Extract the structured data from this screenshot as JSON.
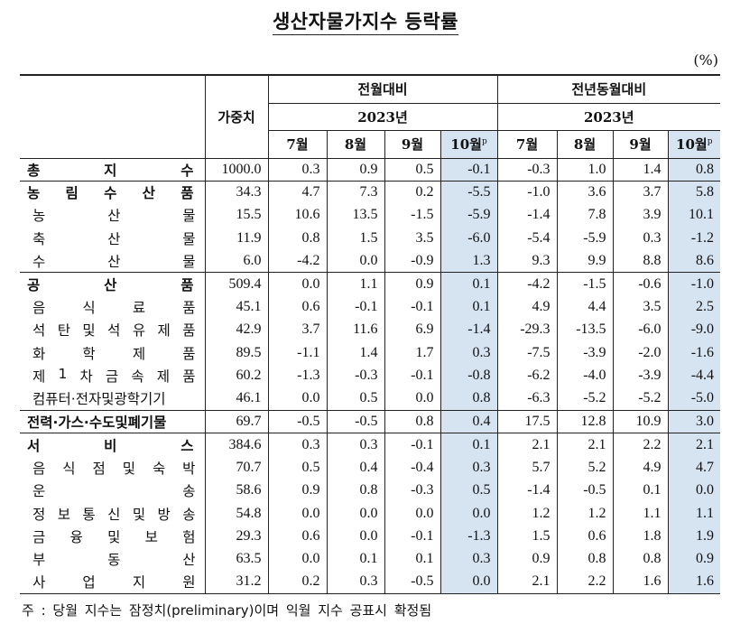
{
  "title": "생산자물가지수 등락률",
  "unit": "(%)",
  "header": {
    "weight": "가중치",
    "mom": "전월대비",
    "yoy": "전년동월대비",
    "year": "2023년",
    "months": [
      "7월",
      "8월",
      "9월",
      "10월"
    ],
    "prelim_mark": "p"
  },
  "rows": [
    {
      "label": "총지수",
      "chars": [
        "총",
        "지",
        "수"
      ],
      "level": "top",
      "weight": "1000.0",
      "mom": [
        "0.3",
        "0.9",
        "0.5",
        "-0.1"
      ],
      "yoy": [
        "-0.3",
        "1.0",
        "1.4",
        "0.8"
      ]
    },
    {
      "label": "농림수산품",
      "chars": [
        "농",
        "림",
        "수",
        "산",
        "품"
      ],
      "level": "top",
      "weight": "34.3",
      "mom": [
        "4.7",
        "7.3",
        "0.2",
        "-5.5"
      ],
      "yoy": [
        "-1.0",
        "3.6",
        "3.7",
        "5.8"
      ]
    },
    {
      "label": "농산물",
      "chars": [
        "농",
        "산",
        "물"
      ],
      "level": "sub",
      "weight": "15.5",
      "mom": [
        "10.6",
        "13.5",
        "-1.5",
        "-5.9"
      ],
      "yoy": [
        "-1.4",
        "7.8",
        "3.9",
        "10.1"
      ]
    },
    {
      "label": "축산물",
      "chars": [
        "축",
        "산",
        "물"
      ],
      "level": "sub",
      "weight": "11.9",
      "mom": [
        "0.8",
        "1.5",
        "3.5",
        "-6.0"
      ],
      "yoy": [
        "-5.4",
        "-5.9",
        "0.3",
        "-1.2"
      ]
    },
    {
      "label": "수산물",
      "chars": [
        "수",
        "산",
        "물"
      ],
      "level": "sub",
      "weight": "6.0",
      "mom": [
        "-4.2",
        "0.0",
        "-0.9",
        "1.3"
      ],
      "yoy": [
        "9.3",
        "9.9",
        "8.8",
        "8.6"
      ]
    },
    {
      "label": "공산품",
      "chars": [
        "공",
        "산",
        "품"
      ],
      "level": "top",
      "weight": "509.4",
      "mom": [
        "0.0",
        "1.1",
        "0.9",
        "0.1"
      ],
      "yoy": [
        "-4.2",
        "-1.5",
        "-0.6",
        "-1.0"
      ]
    },
    {
      "label": "음식료품",
      "chars": [
        "음",
        "식",
        "료",
        "품"
      ],
      "level": "sub",
      "weight": "45.1",
      "mom": [
        "0.6",
        "-0.1",
        "-0.1",
        "0.1"
      ],
      "yoy": [
        "4.9",
        "4.4",
        "3.5",
        "2.5"
      ]
    },
    {
      "label": "석탄및석유제품",
      "chars": [
        "석",
        "탄",
        "및",
        "석",
        "유",
        "제",
        "품"
      ],
      "level": "sub",
      "weight": "42.9",
      "mom": [
        "3.7",
        "11.6",
        "6.9",
        "-1.4"
      ],
      "yoy": [
        "-29.3",
        "-13.5",
        "-6.0",
        "-9.0"
      ]
    },
    {
      "label": "화학제품",
      "chars": [
        "화",
        "학",
        "제",
        "품"
      ],
      "level": "sub",
      "weight": "89.5",
      "mom": [
        "-1.1",
        "1.4",
        "1.7",
        "0.3"
      ],
      "yoy": [
        "-7.5",
        "-3.9",
        "-2.0",
        "-1.6"
      ]
    },
    {
      "label": "제1차금속제품",
      "chars": [
        "제",
        "1",
        "차",
        "금",
        "속",
        "제",
        "품"
      ],
      "level": "sub",
      "weight": "60.2",
      "mom": [
        "-1.3",
        "-0.3",
        "-0.1",
        "-0.8"
      ],
      "yoy": [
        "-6.2",
        "-4.0",
        "-3.9",
        "-4.4"
      ]
    },
    {
      "label": "컴퓨터·전자및광학기기",
      "chars": [
        "컴퓨터·전자및광학기기"
      ],
      "level": "sub",
      "weight": "46.1",
      "mom": [
        "0.0",
        "0.5",
        "0.0",
        "0.8"
      ],
      "yoy": [
        "-6.3",
        "-5.2",
        "-5.2",
        "-5.0"
      ]
    },
    {
      "label": "전력·가스·수도및폐기물",
      "chars": [
        "전력·가스·수도및폐기물"
      ],
      "level": "top",
      "weight": "69.7",
      "mom": [
        "-0.5",
        "-0.5",
        "0.8",
        "0.4"
      ],
      "yoy": [
        "17.5",
        "12.8",
        "10.9",
        "3.0"
      ]
    },
    {
      "label": "서비스",
      "chars": [
        "서",
        "비",
        "스"
      ],
      "level": "top",
      "weight": "384.6",
      "mom": [
        "0.3",
        "0.3",
        "-0.1",
        "0.1"
      ],
      "yoy": [
        "2.1",
        "2.1",
        "2.2",
        "2.1"
      ]
    },
    {
      "label": "음식점및숙박",
      "chars": [
        "음",
        "식",
        "점",
        "및",
        "숙",
        "박"
      ],
      "level": "sub",
      "weight": "70.7",
      "mom": [
        "0.5",
        "0.4",
        "-0.4",
        "0.3"
      ],
      "yoy": [
        "5.7",
        "5.2",
        "4.9",
        "4.7"
      ]
    },
    {
      "label": "운송",
      "chars": [
        "운",
        "송"
      ],
      "level": "sub",
      "weight": "58.6",
      "mom": [
        "0.9",
        "0.8",
        "-0.3",
        "0.5"
      ],
      "yoy": [
        "-1.4",
        "-0.5",
        "0.1",
        "0.0"
      ]
    },
    {
      "label": "정보통신및방송",
      "chars": [
        "정",
        "보",
        "통",
        "신",
        "및",
        "방",
        "송"
      ],
      "level": "sub",
      "weight": "54.8",
      "mom": [
        "0.0",
        "0.0",
        "0.0",
        "0.0"
      ],
      "yoy": [
        "1.2",
        "1.2",
        "1.1",
        "1.1"
      ]
    },
    {
      "label": "금융및보험",
      "chars": [
        "금",
        "융",
        "및",
        "보",
        "험"
      ],
      "level": "sub",
      "weight": "29.3",
      "mom": [
        "0.6",
        "0.0",
        "-0.1",
        "-1.3"
      ],
      "yoy": [
        "1.5",
        "0.6",
        "1.8",
        "1.9"
      ]
    },
    {
      "label": "부동산",
      "chars": [
        "부",
        "동",
        "산"
      ],
      "level": "sub",
      "weight": "63.5",
      "mom": [
        "0.0",
        "0.1",
        "0.1",
        "0.3"
      ],
      "yoy": [
        "0.9",
        "0.8",
        "0.8",
        "0.9"
      ]
    },
    {
      "label": "사업지원",
      "chars": [
        "사",
        "업",
        "지",
        "원"
      ],
      "level": "sub",
      "weight": "31.2",
      "mom": [
        "0.2",
        "0.3",
        "-0.5",
        "0.0"
      ],
      "yoy": [
        "2.1",
        "2.2",
        "1.6",
        "1.6"
      ]
    }
  ],
  "note": "주 : 당월 지수는 잠정치(preliminary)이며 익월 지수 공표시 확정됨"
}
